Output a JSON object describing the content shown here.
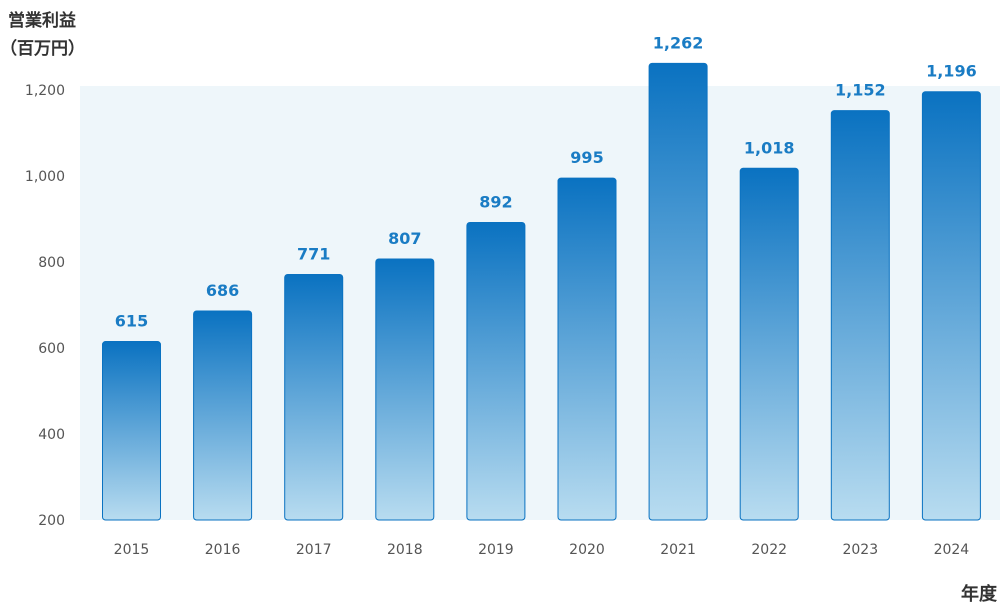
{
  "chart_data": {
    "type": "bar",
    "title": "",
    "ylabel_line1": "営業利益",
    "ylabel_line2": "（百万円）",
    "xlabel": "年度",
    "categories": [
      "2015",
      "2016",
      "2017",
      "2018",
      "2019",
      "2020",
      "2021",
      "2022",
      "2023",
      "2024"
    ],
    "values": [
      615,
      686,
      771,
      807,
      892,
      995,
      1262,
      1018,
      1152,
      1196
    ],
    "value_labels": [
      "615",
      "686",
      "771",
      "807",
      "892",
      "995",
      "1,262",
      "1,018",
      "1,152",
      "1,196"
    ],
    "ylim": [
      200,
      1200
    ],
    "yticks": [
      200,
      400,
      600,
      800,
      1000,
      1200
    ],
    "ytick_labels": [
      "200",
      "400",
      "600",
      "800",
      "1,000",
      "1,200"
    ],
    "grid": false,
    "legend": "none",
    "colors": {
      "bar_top": "#0a72c1",
      "bar_bottom": "#b8dcf0",
      "bar_stroke": "#0a72c1",
      "value_label": "#1a7cc4",
      "plot_background": "#eef6fa"
    }
  }
}
